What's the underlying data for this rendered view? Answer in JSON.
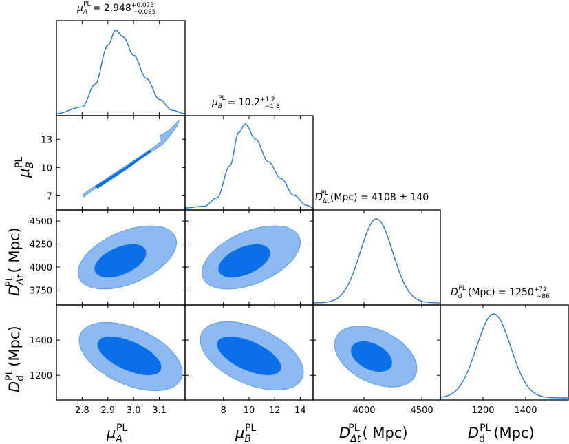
{
  "chart_data": {
    "type": "corner",
    "colors": {
      "line": "#1f77e4",
      "inner": "#0b6fe8",
      "outer": "#8bb9f0",
      "outer_edge": "#5a9ee8"
    },
    "parameters": [
      {
        "id": "muA",
        "symbol": "μ",
        "sub": "A",
        "sup": "PL",
        "units": "",
        "range": [
          2.7,
          3.2
        ],
        "ticks": [
          2.8,
          2.9,
          3.0,
          3.1
        ],
        "tick_labels": [
          "2.8",
          "2.9",
          "3.0",
          "3.1"
        ],
        "title_value": "= 2.948",
        "title_plus": "+0.073",
        "title_minus": "−0.085",
        "marginal": {
          "x": [
            2.7,
            2.8,
            2.85,
            2.9,
            2.93,
            2.96,
            3.0,
            3.05,
            3.1,
            3.15,
            3.2
          ],
          "y": [
            0.0,
            0.08,
            0.35,
            0.82,
            1.0,
            0.92,
            0.7,
            0.42,
            0.17,
            0.04,
            0.0
          ]
        }
      },
      {
        "id": "muB",
        "symbol": "μ",
        "sub": "B",
        "sup": "PL",
        "units": "",
        "range": [
          5,
          15
        ],
        "ticks": [
          8,
          10,
          12,
          14
        ],
        "tick_labels": [
          "8",
          "10",
          "12",
          "14"
        ],
        "y_ticks": [
          7,
          10,
          13
        ],
        "y_tick_labels": [
          "7",
          "10",
          "13"
        ],
        "y_range": [
          5.5,
          15.5
        ],
        "title_value": "= 10.2",
        "title_plus": "+1.2",
        "title_minus": "−1.8",
        "marginal": {
          "x": [
            5,
            6.5,
            7.5,
            8.5,
            9.2,
            9.7,
            10.5,
            11.5,
            12.5,
            13.5,
            14.5,
            15
          ],
          "y": [
            0.0,
            0.02,
            0.12,
            0.5,
            0.9,
            1.0,
            0.82,
            0.55,
            0.35,
            0.15,
            0.03,
            0.0
          ]
        }
      },
      {
        "id": "Ddt",
        "symbol": "D",
        "sub": "Δt",
        "sup": "PL",
        "units": "( Mpc)",
        "range": [
          3560,
          4660
        ],
        "ticks": [
          4000,
          4500
        ],
        "tick_labels": [
          "4000",
          "4500"
        ],
        "y_ticks": [
          3750,
          4000,
          4250,
          4500
        ],
        "y_tick_labels": [
          "3750",
          "4000",
          "4250",
          "4500"
        ],
        "y_range": [
          3590,
          4620
        ],
        "title_text": "(Mpc) = 4108 ± 140",
        "marginal": {
          "mean": 4108,
          "sigma": 140
        }
      },
      {
        "id": "Dd",
        "symbol": "D",
        "sub": "d",
        "sup": "PL",
        "units": "(Mpc)",
        "range": [
          1000,
          1600
        ],
        "ticks": [
          1200,
          1400
        ],
        "tick_labels": [
          "1200",
          "1400"
        ],
        "y_ticks": [
          1200,
          1400
        ],
        "y_tick_labels": [
          "1200",
          "1400"
        ],
        "y_range": [
          1060,
          1600
        ],
        "title_value": "(Mpc) = 1250",
        "title_plus": "+72",
        "title_minus": "−86",
        "marginal": {
          "mean": 1250,
          "sigma": 80
        }
      }
    ],
    "pairs": [
      {
        "row": 1,
        "col": 0,
        "kind": "degenerate",
        "line_points": [
          [
            2.81,
            7.2
          ],
          [
            3.12,
            13.8
          ]
        ]
      },
      {
        "row": 2,
        "col": 0,
        "center": [
          2.93,
          4108
        ],
        "outer": [
          [
            2.74,
            3830
          ],
          [
            3.08,
            4470
          ],
          [
            3.13,
            4420
          ],
          [
            2.78,
            3780
          ]
        ],
        "inner_scale": 0.55
      },
      {
        "row": 2,
        "col": 1,
        "center": [
          10.1,
          4108
        ],
        "outer": [
          [
            6.5,
            3830
          ],
          [
            14.3,
            4470
          ]
        ],
        "inner_scale": 0.55
      },
      {
        "row": 3,
        "col": 0,
        "center": [
          2.94,
          1250
        ],
        "corr": -0.7
      },
      {
        "row": 3,
        "col": 1,
        "center": [
          10.2,
          1250
        ],
        "corr": -0.7
      },
      {
        "row": 3,
        "col": 2,
        "center": [
          4108,
          1250
        ],
        "corr": -0.55
      }
    ]
  }
}
